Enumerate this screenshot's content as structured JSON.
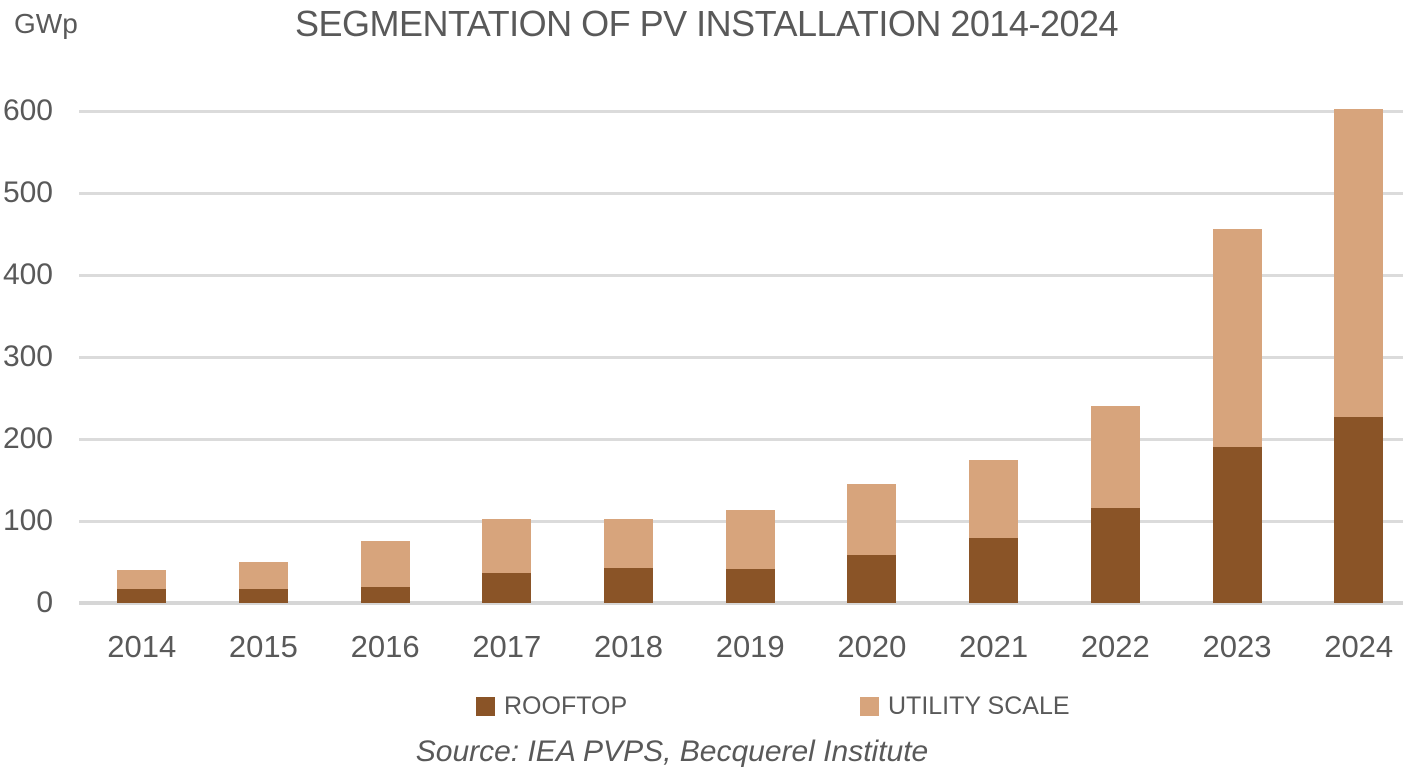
{
  "header": {
    "units_label": "GWp",
    "title": "SEGMENTATION OF PV INSTALLATION 2014-2024"
  },
  "chart_data": {
    "type": "bar",
    "stacked": true,
    "title": "SEGMENTATION OF PV INSTALLATION 2014-2024",
    "ylabel": "GWp",
    "xlabel": "",
    "categories": [
      "2014",
      "2015",
      "2016",
      "2017",
      "2018",
      "2019",
      "2020",
      "2021",
      "2022",
      "2023",
      "2024"
    ],
    "series": [
      {
        "name": "ROOFTOP",
        "color": "#8A5427",
        "values": [
          17,
          17,
          19,
          37,
          43,
          41,
          58,
          79,
          116,
          190,
          227
        ]
      },
      {
        "name": "UTILITY SCALE",
        "color": "#D7A47C",
        "values": [
          23,
          33,
          57,
          65,
          60,
          73,
          87,
          96,
          124,
          266,
          375
        ]
      }
    ],
    "ylim": [
      0,
      600
    ],
    "yticks": [
      0,
      100,
      200,
      300,
      400,
      500,
      600
    ],
    "grid": true,
    "legend_position": "bottom"
  },
  "legend": {
    "items": [
      {
        "label": "ROOFTOP",
        "color": "#8A5427"
      },
      {
        "label": "UTILITY SCALE",
        "color": "#D7A47C"
      }
    ]
  },
  "footer": {
    "source": "Source: IEA PVPS, Becquerel Institute"
  },
  "colors": {
    "text": "#595959",
    "gridline": "#DBDBDB",
    "axis_line": "#D6D6D6",
    "background": "#FFFFFF"
  }
}
